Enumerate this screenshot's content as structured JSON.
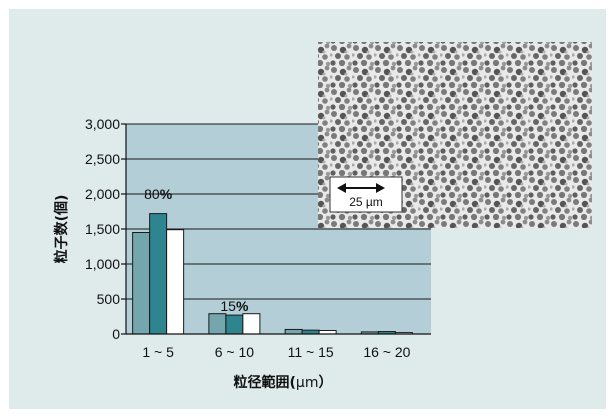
{
  "chart_data": {
    "type": "bar",
    "title": "",
    "xlabel": "粒径範囲(",
    "xlabel_unit": "μm",
    "xlabel_close": "）",
    "ylabel": "粒子数(個)",
    "ylim": [
      0,
      3000
    ],
    "yticks": [
      0,
      500,
      1000,
      1500,
      2000,
      2500,
      3000
    ],
    "ytick_labels": [
      "0",
      "500",
      "1,000",
      "1,500",
      "2,000",
      "2,500",
      "3,000"
    ],
    "categories": [
      "1 ~ 5",
      "6 ~ 10",
      "11 ~ 15",
      "16 ~ 20"
    ],
    "series": [
      {
        "color": "#74a6ad",
        "values": [
          1450,
          290,
          65,
          30
        ]
      },
      {
        "color": "#2e8590",
        "values": [
          1720,
          270,
          55,
          35
        ]
      },
      {
        "color": "#ffffff",
        "values": [
          1490,
          290,
          50,
          20
        ]
      }
    ],
    "annotations": [
      {
        "category": "1 ~ 5",
        "value_text": "80",
        "symbol": "%",
        "y": 1930
      },
      {
        "category": "6 ~ 10",
        "value_text": "15",
        "symbol": "%",
        "y": 330
      }
    ],
    "grid": true,
    "plot_background": "#b3ced6",
    "inset_image": {
      "scale_label": "25 µm"
    }
  }
}
